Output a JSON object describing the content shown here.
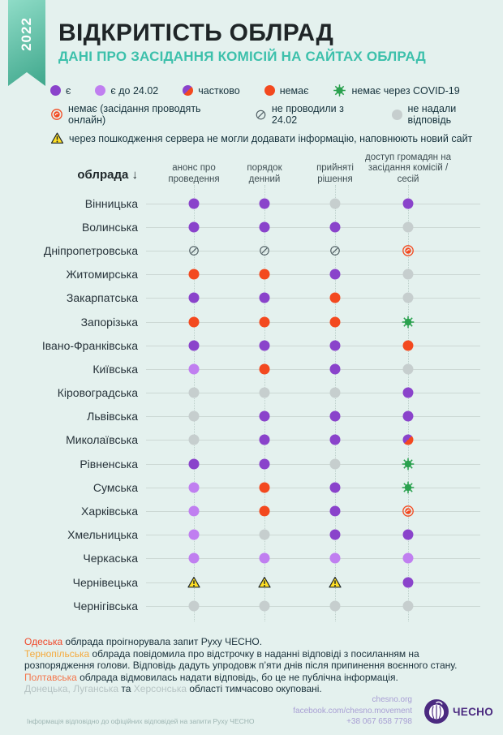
{
  "ribbon": {
    "year": "2022"
  },
  "header": {
    "title": "ВІДКРИТІСТЬ ОБЛРАД",
    "subtitle": "ДАНІ ПРО ЗАСІДАННЯ КОМІСІЙ НА САЙТАХ ОБЛРАД"
  },
  "legend": {
    "rows": [
      [
        {
          "icon": "present",
          "label": "є"
        },
        {
          "icon": "until_2402",
          "label": "є до 24.02"
        },
        {
          "icon": "partial",
          "label": "частково"
        },
        {
          "icon": "none",
          "label": "немає"
        },
        {
          "icon": "covid",
          "label": "немає через COVID-19"
        }
      ],
      [
        {
          "icon": "online",
          "label": "немає (засідання проводять онлайн)"
        },
        {
          "icon": "not_held",
          "label": "не проводили з 24.02"
        },
        {
          "icon": "no_answer",
          "label": "не надали відповідь"
        }
      ],
      [
        {
          "icon": "server_damage",
          "label": "через пошкодження сервера не могли додавати інформацію, наповнюють новий сайт"
        }
      ]
    ]
  },
  "table": {
    "row_header": "облрада ↓"
  },
  "chart_data": {
    "type": "table",
    "title": "ВІДКРИТІСТЬ ОБЛРАД",
    "subtitle": "ДАНІ ПРО ЗАСІДАННЯ КОМІСІЙ НА САЙТАХ ОБЛРАД",
    "columns": [
      "анонс про проведення",
      "порядок денний",
      "прийняті рішення",
      "доступ громадян на засідання комісій / сесій"
    ],
    "status_legend": {
      "present": "є",
      "until_2402": "є до 24.02",
      "partial": "частково",
      "none": "немає",
      "covid": "немає через COVID-19",
      "online": "немає (засідання проводять онлайн)",
      "not_held": "не проводили з 24.02",
      "no_answer": "не надали відповідь",
      "server_damage": "через пошкодження сервера не могли додавати інформацію, наповнюють новий сайт"
    },
    "rows": [
      {
        "region": "Вінницька",
        "cells": [
          "present",
          "present",
          "no_answer",
          "present"
        ]
      },
      {
        "region": "Волинська",
        "cells": [
          "present",
          "present",
          "present",
          "no_answer"
        ]
      },
      {
        "region": "Дніпропетровська",
        "cells": [
          "not_held",
          "not_held",
          "not_held",
          "online"
        ]
      },
      {
        "region": "Житомирська",
        "cells": [
          "none",
          "none",
          "present",
          "no_answer"
        ]
      },
      {
        "region": "Закарпатська",
        "cells": [
          "present",
          "present",
          "none",
          "no_answer"
        ]
      },
      {
        "region": "Запорізька",
        "cells": [
          "none",
          "none",
          "none",
          "covid"
        ]
      },
      {
        "region": "Івано-Франківська",
        "cells": [
          "present",
          "present",
          "present",
          "none"
        ]
      },
      {
        "region": "Київська",
        "cells": [
          "until_2402",
          "none",
          "present",
          "no_answer"
        ]
      },
      {
        "region": "Кіровоградська",
        "cells": [
          "no_answer",
          "no_answer",
          "no_answer",
          "present"
        ]
      },
      {
        "region": "Львівська",
        "cells": [
          "no_answer",
          "present",
          "present",
          "present"
        ]
      },
      {
        "region": "Миколаївська",
        "cells": [
          "no_answer",
          "present",
          "present",
          "partial"
        ]
      },
      {
        "region": "Рівненська",
        "cells": [
          "present",
          "present",
          "no_answer",
          "covid"
        ]
      },
      {
        "region": "Сумська",
        "cells": [
          "until_2402",
          "none",
          "present",
          "covid"
        ]
      },
      {
        "region": "Харківська",
        "cells": [
          "until_2402",
          "none",
          "present",
          "online"
        ]
      },
      {
        "region": "Хмельницька",
        "cells": [
          "until_2402",
          "no_answer",
          "present",
          "present"
        ]
      },
      {
        "region": "Черкаська",
        "cells": [
          "until_2402",
          "until_2402",
          "until_2402",
          "until_2402"
        ]
      },
      {
        "region": "Чернівецька",
        "cells": [
          "server_damage",
          "server_damage",
          "server_damage",
          "present"
        ]
      },
      {
        "region": "Чернігівська",
        "cells": [
          "no_answer",
          "no_answer",
          "no_answer",
          "no_answer"
        ]
      }
    ]
  },
  "notes": [
    [
      {
        "t": "Одеська",
        "c": "red"
      },
      {
        "t": " облрада проігнорувала запит Руху ЧЕСНО.",
        "c": "dark"
      }
    ],
    [
      {
        "t": "Тернопільська",
        "c": "orange"
      },
      {
        "t": " облрада повідомила про відстрочку в наданні відповіді з посиланням на розпорядження голови. Відповідь дадуть упродовж п’яти днів після припинення воєнного стану.",
        "c": "dark"
      }
    ],
    [
      {
        "t": "Полтавська",
        "c": "salmon"
      },
      {
        "t": " облрада відмовилась надати відповідь, бо це не публічна інформація.",
        "c": "dark"
      }
    ],
    [
      {
        "t": "Донецька, Луганська",
        "c": "gray"
      },
      {
        "t": " та ",
        "c": "dark"
      },
      {
        "t": "Херсонська",
        "c": "gray"
      },
      {
        "t": " області тимчасово окуповані.",
        "c": "dark"
      }
    ]
  ],
  "footer": {
    "disclaimer": "Інформація відповідно до офіційних відповідей на запити Руху ЧЕСНО",
    "contacts": [
      "chesno.org",
      "facebook.com/chesno.movement",
      "+38 067 658 7798"
    ],
    "logo_text": "ЧЕСНО"
  },
  "colors": {
    "background": "#e4f1ee",
    "teal": "#3cc0ab",
    "purple": "#8a43cb",
    "light_purple": "#c07ff0",
    "red": "#f3491f",
    "gray_dot": "#c6cece",
    "green": "#2aa14e",
    "yellow": "#ffdf25",
    "slash": "#4e5c62",
    "note_red": "#f0482a",
    "note_orange": "#f5a93b",
    "note_salmon": "#f4764c",
    "note_gray": "#b6c3c3",
    "text_dark": "#182f39",
    "logo_purple": "#4b2a80"
  }
}
